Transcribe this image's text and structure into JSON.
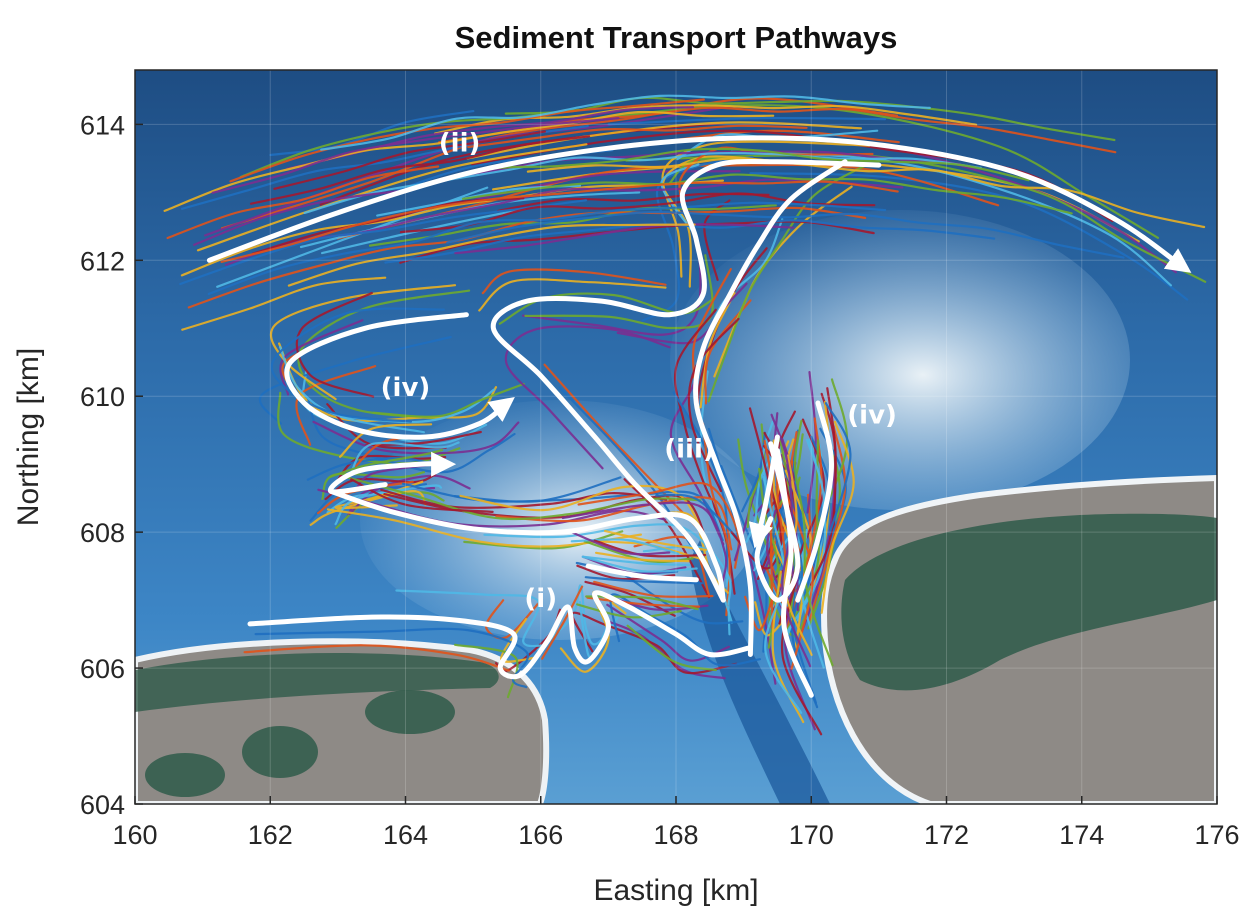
{
  "chart_data": {
    "type": "scatter",
    "title": "Sediment Transport Pathways",
    "xlabel": "Easting [km]",
    "ylabel": "Northing [km]",
    "xlim": [
      160,
      176
    ],
    "ylim": [
      604,
      614.8
    ],
    "xticks": [
      160,
      162,
      164,
      166,
      168,
      170,
      172,
      174,
      176
    ],
    "yticks": [
      604,
      606,
      608,
      610,
      612,
      614
    ],
    "grid": true,
    "background": "bathymetry shaded relief (tidal inlet between two islands)",
    "series_colors": [
      "#1f6fc0",
      "#e0531b",
      "#eab022",
      "#7a2f91",
      "#6eaa2f",
      "#4fb8e6",
      "#a3182f"
    ],
    "annotations": [
      {
        "label": "(i)",
        "x": 166.0,
        "y": 606.9
      },
      {
        "label": "(ii)",
        "x": 164.8,
        "y": 613.6
      },
      {
        "label": "(iii)",
        "x": 168.2,
        "y": 609.1
      },
      {
        "label": "(iv)",
        "x": 164.0,
        "y": 610.0
      },
      {
        "label": "(iv)",
        "x": 170.9,
        "y": 609.6
      }
    ],
    "pathways": [
      {
        "label": "(ii)",
        "points": [
          [
            161.1,
            612.0
          ],
          [
            163.0,
            612.7
          ],
          [
            165.0,
            613.3
          ],
          [
            167.0,
            613.65
          ],
          [
            169.0,
            613.8
          ],
          [
            171.0,
            613.7
          ],
          [
            173.0,
            613.3
          ],
          [
            174.5,
            612.6
          ],
          [
            175.5,
            611.9
          ]
        ],
        "arrow": true
      },
      {
        "label": "(iv)",
        "points": [
          [
            164.9,
            611.2
          ],
          [
            163.4,
            611.0
          ],
          [
            162.3,
            610.5
          ],
          [
            162.5,
            609.9
          ],
          [
            163.3,
            609.5
          ],
          [
            164.3,
            609.4
          ],
          [
            165.1,
            609.6
          ],
          [
            165.5,
            609.9
          ]
        ],
        "arrow": true
      },
      {
        "label": "(iii)",
        "points": [
          [
            168.7,
            607.0
          ],
          [
            168.2,
            607.9
          ],
          [
            167.4,
            608.7
          ],
          [
            166.8,
            609.4
          ],
          [
            166.0,
            610.3
          ],
          [
            165.3,
            611.0
          ],
          [
            165.8,
            611.4
          ],
          [
            166.9,
            611.4
          ],
          [
            167.9,
            611.2
          ],
          [
            168.4,
            611.5
          ],
          [
            168.3,
            612.3
          ],
          [
            168.1,
            613.0
          ],
          [
            168.6,
            613.4
          ],
          [
            169.5,
            613.45
          ],
          [
            171.0,
            613.4
          ]
        ],
        "arrow": false
      },
      {
        "label": "(iii)",
        "points": [
          [
            169.1,
            606.2
          ],
          [
            169.1,
            607.2
          ],
          [
            168.9,
            608.2
          ],
          [
            168.6,
            609.0
          ],
          [
            168.3,
            609.9
          ],
          [
            168.4,
            610.7
          ],
          [
            168.8,
            611.5
          ],
          [
            169.2,
            612.2
          ],
          [
            169.7,
            612.9
          ],
          [
            170.5,
            613.45
          ]
        ],
        "arrow": false
      },
      {
        "label": "(iv)",
        "points": [
          [
            163.7,
            608.7
          ],
          [
            162.9,
            608.6
          ],
          [
            163.3,
            608.9
          ],
          [
            164.2,
            609.0
          ],
          [
            164.6,
            609.0
          ]
        ],
        "arrow": true
      },
      {
        "label": "(iii)",
        "points": [
          [
            162.9,
            608.6
          ],
          [
            163.8,
            608.3
          ],
          [
            165.0,
            608.05
          ],
          [
            166.3,
            608.0
          ],
          [
            167.4,
            608.2
          ],
          [
            168.2,
            608.2
          ],
          [
            168.6,
            607.5
          ],
          [
            168.7,
            607.0
          ]
        ],
        "arrow": false
      },
      {
        "label": "(iv)",
        "points": [
          [
            169.5,
            609.4
          ],
          [
            169.4,
            608.8
          ],
          [
            169.3,
            608.3
          ],
          [
            169.2,
            607.9
          ]
        ],
        "arrow": true
      },
      {
        "label": "(iv)",
        "points": [
          [
            169.4,
            609.3
          ],
          [
            169.6,
            608.5
          ],
          [
            169.8,
            607.5
          ],
          [
            169.5,
            607.0
          ],
          [
            169.2,
            607.6
          ],
          [
            169.4,
            608.2
          ]
        ],
        "arrow": false
      },
      {
        "label": "(iv)",
        "points": [
          [
            170.1,
            609.9
          ],
          [
            170.3,
            609.0
          ],
          [
            170.1,
            607.9
          ],
          [
            169.8,
            607.0
          ]
        ],
        "arrow": false
      },
      {
        "label": "(iii)",
        "points": [
          [
            170.0,
            605.6
          ],
          [
            169.6,
            606.6
          ],
          [
            169.7,
            607.7
          ],
          [
            169.6,
            608.6
          ],
          [
            169.5,
            609.2
          ]
        ],
        "arrow": false
      },
      {
        "label": "(i)",
        "points": [
          [
            161.7,
            606.65
          ],
          [
            163.5,
            606.75
          ],
          [
            164.8,
            606.7
          ],
          [
            165.6,
            606.5
          ],
          [
            165.4,
            606.0
          ],
          [
            165.7,
            605.9
          ],
          [
            166.1,
            606.4
          ],
          [
            166.4,
            606.9
          ],
          [
            166.5,
            606.3
          ],
          [
            166.7,
            606.1
          ],
          [
            167.0,
            606.6
          ],
          [
            166.8,
            607.1
          ],
          [
            167.3,
            606.9
          ],
          [
            168.0,
            606.5
          ],
          [
            168.5,
            606.2
          ],
          [
            169.1,
            606.3
          ]
        ],
        "arrow": false
      },
      {
        "label": "(i)",
        "points": [
          [
            166.7,
            607.5
          ],
          [
            167.5,
            607.35
          ],
          [
            168.3,
            607.3
          ]
        ],
        "arrow": false
      }
    ]
  }
}
